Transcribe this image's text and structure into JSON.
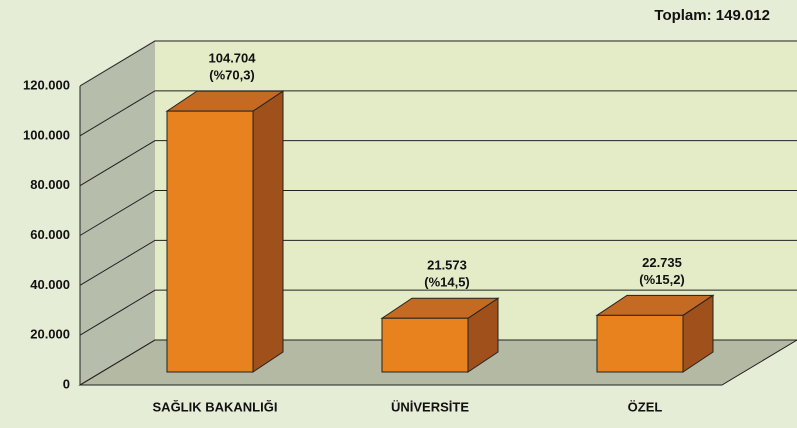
{
  "chart_data": {
    "type": "bar3d",
    "annotation": "Toplam: 149.012",
    "categories": [
      "SAĞLIK BAKANLIĞI",
      "ÜNİVERSİTE",
      "ÖZEL"
    ],
    "values": [
      104704,
      21573,
      22735
    ],
    "value_labels": [
      "104.704",
      "21.573",
      "22.735"
    ],
    "share_labels": [
      "(%70,3)",
      "(%14,5)",
      "(%15,2)"
    ],
    "color": "#e8821e",
    "ylim": [
      0,
      120000
    ],
    "yticks": [
      {
        "value": 0,
        "label": "0"
      },
      {
        "value": 20000,
        "label": "20.000"
      },
      {
        "value": 40000,
        "label": "40.000"
      },
      {
        "value": 60000,
        "label": "60.000"
      },
      {
        "value": 80000,
        "label": "80.000"
      },
      {
        "value": 100000,
        "label": "100.000"
      },
      {
        "value": 120000,
        "label": "120.000"
      }
    ],
    "grid": true
  }
}
